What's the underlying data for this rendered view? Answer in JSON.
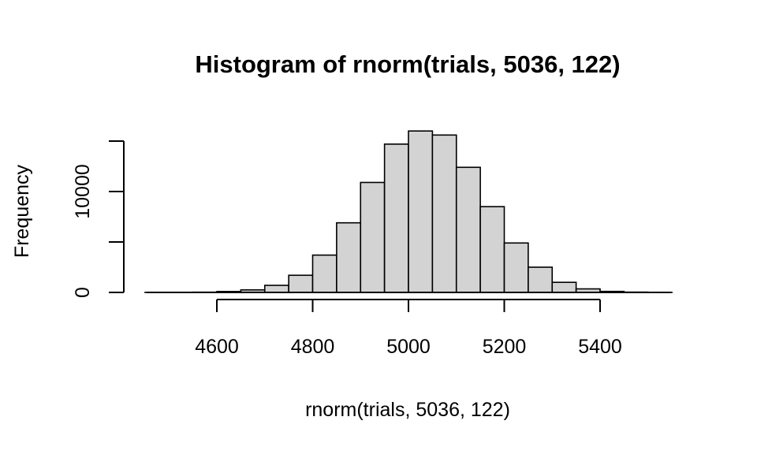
{
  "chart_data": {
    "type": "bar",
    "title": "Histogram of rnorm(trials, 5036, 122)",
    "xlabel": "rnorm(trials, 5036, 122)",
    "ylabel": "Frequency",
    "bin_width": 50,
    "bins": [
      {
        "start": 4450,
        "end": 4500,
        "value": 2
      },
      {
        "start": 4500,
        "end": 4550,
        "value": 8
      },
      {
        "start": 4550,
        "end": 4600,
        "value": 25
      },
      {
        "start": 4600,
        "end": 4650,
        "value": 90
      },
      {
        "start": 4650,
        "end": 4700,
        "value": 250
      },
      {
        "start": 4700,
        "end": 4750,
        "value": 700
      },
      {
        "start": 4750,
        "end": 4800,
        "value": 1700
      },
      {
        "start": 4800,
        "end": 4850,
        "value": 3700
      },
      {
        "start": 4850,
        "end": 4900,
        "value": 6900
      },
      {
        "start": 4900,
        "end": 4950,
        "value": 10900
      },
      {
        "start": 4950,
        "end": 5000,
        "value": 14700
      },
      {
        "start": 5000,
        "end": 5050,
        "value": 16000
      },
      {
        "start": 5050,
        "end": 5100,
        "value": 15600
      },
      {
        "start": 5100,
        "end": 5150,
        "value": 12400
      },
      {
        "start": 5150,
        "end": 5200,
        "value": 8500
      },
      {
        "start": 5200,
        "end": 5250,
        "value": 4900
      },
      {
        "start": 5250,
        "end": 5300,
        "value": 2500
      },
      {
        "start": 5300,
        "end": 5350,
        "value": 1000
      },
      {
        "start": 5350,
        "end": 5400,
        "value": 350
      },
      {
        "start": 5400,
        "end": 5450,
        "value": 100
      },
      {
        "start": 5450,
        "end": 5500,
        "value": 30
      },
      {
        "start": 5500,
        "end": 5550,
        "value": 8
      }
    ],
    "xlim": [
      4450,
      5550
    ],
    "ylim": [
      0,
      15000
    ],
    "x_ticks": [
      4600,
      4800,
      5000,
      5200,
      5400
    ],
    "x_tick_labels": [
      "4600",
      "4800",
      "5000",
      "5200",
      "5400"
    ],
    "y_ticks": [
      0,
      5000,
      10000,
      15000
    ],
    "y_tick_labels": [
      "0",
      "",
      "10000",
      ""
    ],
    "grid": false,
    "legend": "none"
  }
}
